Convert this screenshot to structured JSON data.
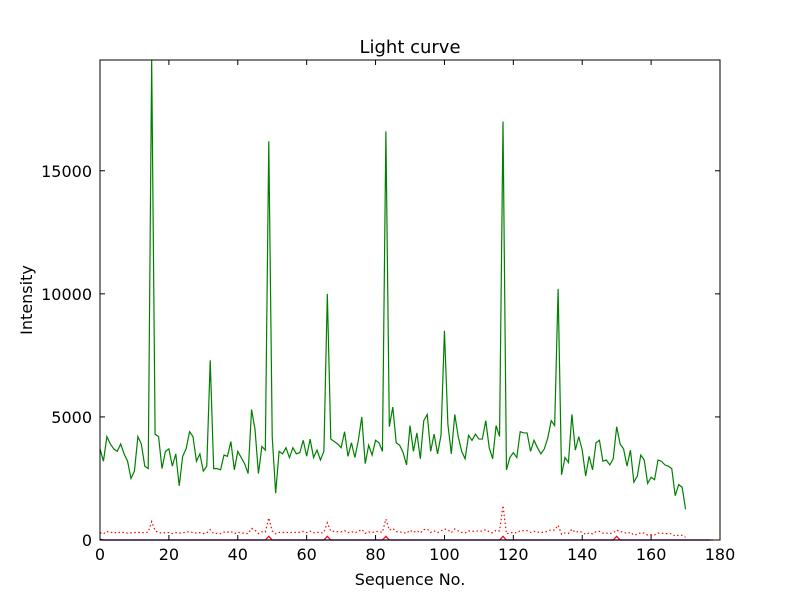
{
  "chart_data": {
    "type": "line",
    "title": "Light curve",
    "xlabel": "Sequence No.",
    "ylabel": "Intensity",
    "xlim": [
      0,
      180
    ],
    "ylim": [
      0,
      19500
    ],
    "xticks": [
      0,
      20,
      40,
      60,
      80,
      100,
      120,
      140,
      160,
      180
    ],
    "yticks": [
      0,
      5000,
      10000,
      15000
    ],
    "ytick_labels": [
      "0",
      "5000",
      "10000",
      "15000"
    ],
    "grid": false,
    "legend": "none",
    "series": [
      {
        "color": "#008000",
        "style": "solid",
        "values": [
          3700,
          3200,
          4200,
          3900,
          3700,
          3600,
          3900,
          3500,
          3200,
          2500,
          2800,
          4200,
          3900,
          3000,
          2900,
          19500,
          4300,
          4200,
          2900,
          3600,
          3700,
          3000,
          3500,
          2200,
          3400,
          3700,
          4400,
          4200,
          3200,
          3500,
          2800,
          3000,
          7300,
          2900,
          2900,
          2850,
          3450,
          3400,
          4000,
          2850,
          3600,
          3350,
          3100,
          2700,
          5300,
          4500,
          2700,
          3800,
          3650,
          16200,
          4200,
          1900,
          3600,
          3500,
          3750,
          3350,
          3750,
          3500,
          3550,
          4050,
          3400,
          4100,
          3350,
          3650,
          3250,
          3600,
          10000,
          4100,
          4000,
          3900,
          3750,
          4400,
          3400,
          3950,
          3350,
          4050,
          5000,
          3100,
          3850,
          3450,
          4050,
          3950,
          3600,
          16600,
          4600,
          5400,
          3950,
          3850,
          3550,
          3050,
          4650,
          3600,
          4350,
          3300,
          4850,
          5100,
          3600,
          4300,
          3500,
          4250,
          8500,
          4700,
          3500,
          5100,
          4200,
          3600,
          3300,
          4250,
          4050,
          4300,
          4100,
          4100,
          4850,
          3750,
          3300,
          4650,
          4200,
          17000,
          2850,
          3350,
          3550,
          3350,
          4400,
          4350,
          4350,
          3600,
          4050,
          3750,
          3500,
          3700,
          4150,
          4850,
          4650,
          10200,
          2650,
          3350,
          3150,
          5100,
          3650,
          4200,
          3650,
          2600,
          3400,
          2850,
          3950,
          4050,
          3200,
          3250,
          3050,
          3300,
          4600,
          3900,
          3700,
          3000,
          3650,
          2350,
          2600,
          3450,
          3250,
          2300,
          2550,
          2450,
          3250,
          3200,
          3050,
          3000,
          2900,
          1800,
          2250,
          2150,
          1250
        ]
      },
      {
        "color": "#ff0000",
        "style": "dotted",
        "values": [
          300,
          250,
          350,
          300,
          320,
          280,
          330,
          300,
          280,
          290,
          300,
          310,
          300,
          300,
          320,
          750,
          380,
          300,
          280,
          300,
          300,
          260,
          300,
          280,
          290,
          320,
          340,
          300,
          280,
          300,
          260,
          290,
          420,
          260,
          270,
          260,
          320,
          310,
          350,
          260,
          310,
          290,
          270,
          260,
          470,
          400,
          260,
          330,
          320,
          900,
          370,
          250,
          310,
          300,
          320,
          290,
          320,
          300,
          310,
          350,
          300,
          360,
          290,
          320,
          280,
          310,
          700,
          360,
          350,
          340,
          330,
          380,
          300,
          340,
          290,
          350,
          430,
          270,
          330,
          300,
          350,
          340,
          310,
          850,
          400,
          470,
          340,
          330,
          310,
          270,
          400,
          310,
          380,
          290,
          420,
          450,
          310,
          370,
          300,
          370,
          450,
          410,
          300,
          450,
          370,
          310,
          290,
          370,
          350,
          370,
          360,
          360,
          420,
          330,
          290,
          400,
          370,
          1400,
          250,
          290,
          310,
          290,
          380,
          380,
          380,
          310,
          350,
          330,
          300,
          320,
          360,
          420,
          400,
          600,
          230,
          290,
          270,
          440,
          310,
          360,
          310,
          230,
          290,
          250,
          340,
          350,
          280,
          280,
          260,
          290,
          400,
          340,
          320,
          260,
          310,
          200,
          230,
          300,
          280,
          200,
          220,
          210,
          280,
          280,
          260,
          260,
          250,
          160,
          200,
          190,
          110
        ]
      },
      {
        "color": "#ff0000",
        "style": "solid",
        "values": [
          0,
          0,
          0,
          0,
          0,
          0,
          0,
          0,
          0,
          0,
          0,
          0,
          0,
          0,
          0,
          0,
          0,
          0,
          0,
          0,
          0,
          0,
          0,
          0,
          0,
          0,
          0,
          0,
          0,
          0,
          0,
          0,
          0,
          0,
          0,
          0,
          0,
          0,
          0,
          0,
          0,
          0,
          0,
          0,
          0,
          0,
          0,
          0,
          0,
          150,
          0,
          0,
          0,
          0,
          0,
          0,
          0,
          0,
          0,
          0,
          0,
          0,
          0,
          0,
          0,
          0,
          150,
          0,
          0,
          0,
          0,
          0,
          0,
          0,
          0,
          0,
          0,
          0,
          0,
          0,
          0,
          0,
          0,
          150,
          0,
          0,
          0,
          0,
          0,
          0,
          0,
          0,
          0,
          0,
          0,
          0,
          0,
          0,
          0,
          0,
          0,
          0,
          0,
          0,
          0,
          0,
          0,
          0,
          0,
          0,
          0,
          0,
          0,
          0,
          0,
          0,
          0,
          150,
          0,
          0,
          0,
          0,
          0,
          0,
          0,
          0,
          0,
          0,
          0,
          0,
          0,
          0,
          0,
          0,
          0,
          0,
          0,
          0,
          0,
          0,
          0,
          0,
          0,
          0,
          0,
          0,
          0,
          0,
          0,
          0,
          150,
          0,
          0,
          0,
          0,
          0,
          0,
          0,
          0,
          0,
          0,
          0,
          0,
          0,
          0,
          0,
          0,
          0,
          0,
          0,
          0,
          0,
          0,
          0,
          0,
          0,
          0,
          0,
          0
        ]
      },
      {
        "color": "#0000ff",
        "style": "solid",
        "values": [
          30,
          0,
          0,
          0,
          0,
          0,
          0,
          0,
          0,
          0,
          0,
          0,
          0,
          0,
          0,
          0,
          0,
          0,
          0,
          0,
          0,
          0,
          0,
          0,
          0,
          0,
          0,
          0,
          0,
          0,
          0,
          0,
          0,
          0,
          0,
          0,
          0,
          0,
          0,
          0,
          0,
          0,
          0,
          0,
          0,
          0,
          0,
          0,
          0,
          0,
          0,
          0,
          0,
          0,
          0,
          0,
          0,
          0,
          0,
          0,
          0,
          0,
          0,
          0,
          0,
          0,
          0,
          0,
          0,
          0,
          0,
          0,
          0,
          0,
          0,
          0,
          0,
          0,
          0,
          0,
          0,
          0,
          0,
          0,
          0,
          0,
          0,
          0,
          0,
          0,
          0,
          0,
          0,
          0,
          0,
          0,
          0,
          0,
          0,
          0,
          0,
          0,
          0,
          0,
          0,
          0,
          0,
          0,
          0,
          0,
          0,
          0,
          0,
          0,
          0,
          0,
          0,
          0,
          0,
          0,
          0,
          0,
          0,
          0,
          0,
          0,
          0,
          0,
          0,
          0,
          0,
          0,
          0,
          0,
          0,
          0,
          0,
          0,
          0,
          0,
          0,
          0,
          0,
          0,
          0,
          0,
          0,
          0,
          0,
          0,
          0,
          0,
          0,
          0,
          0,
          0,
          0,
          0,
          0,
          0,
          0,
          0,
          0,
          0,
          0,
          0,
          0,
          0,
          0,
          0,
          0,
          0,
          0,
          0,
          0,
          0,
          0,
          0
        ]
      }
    ]
  }
}
